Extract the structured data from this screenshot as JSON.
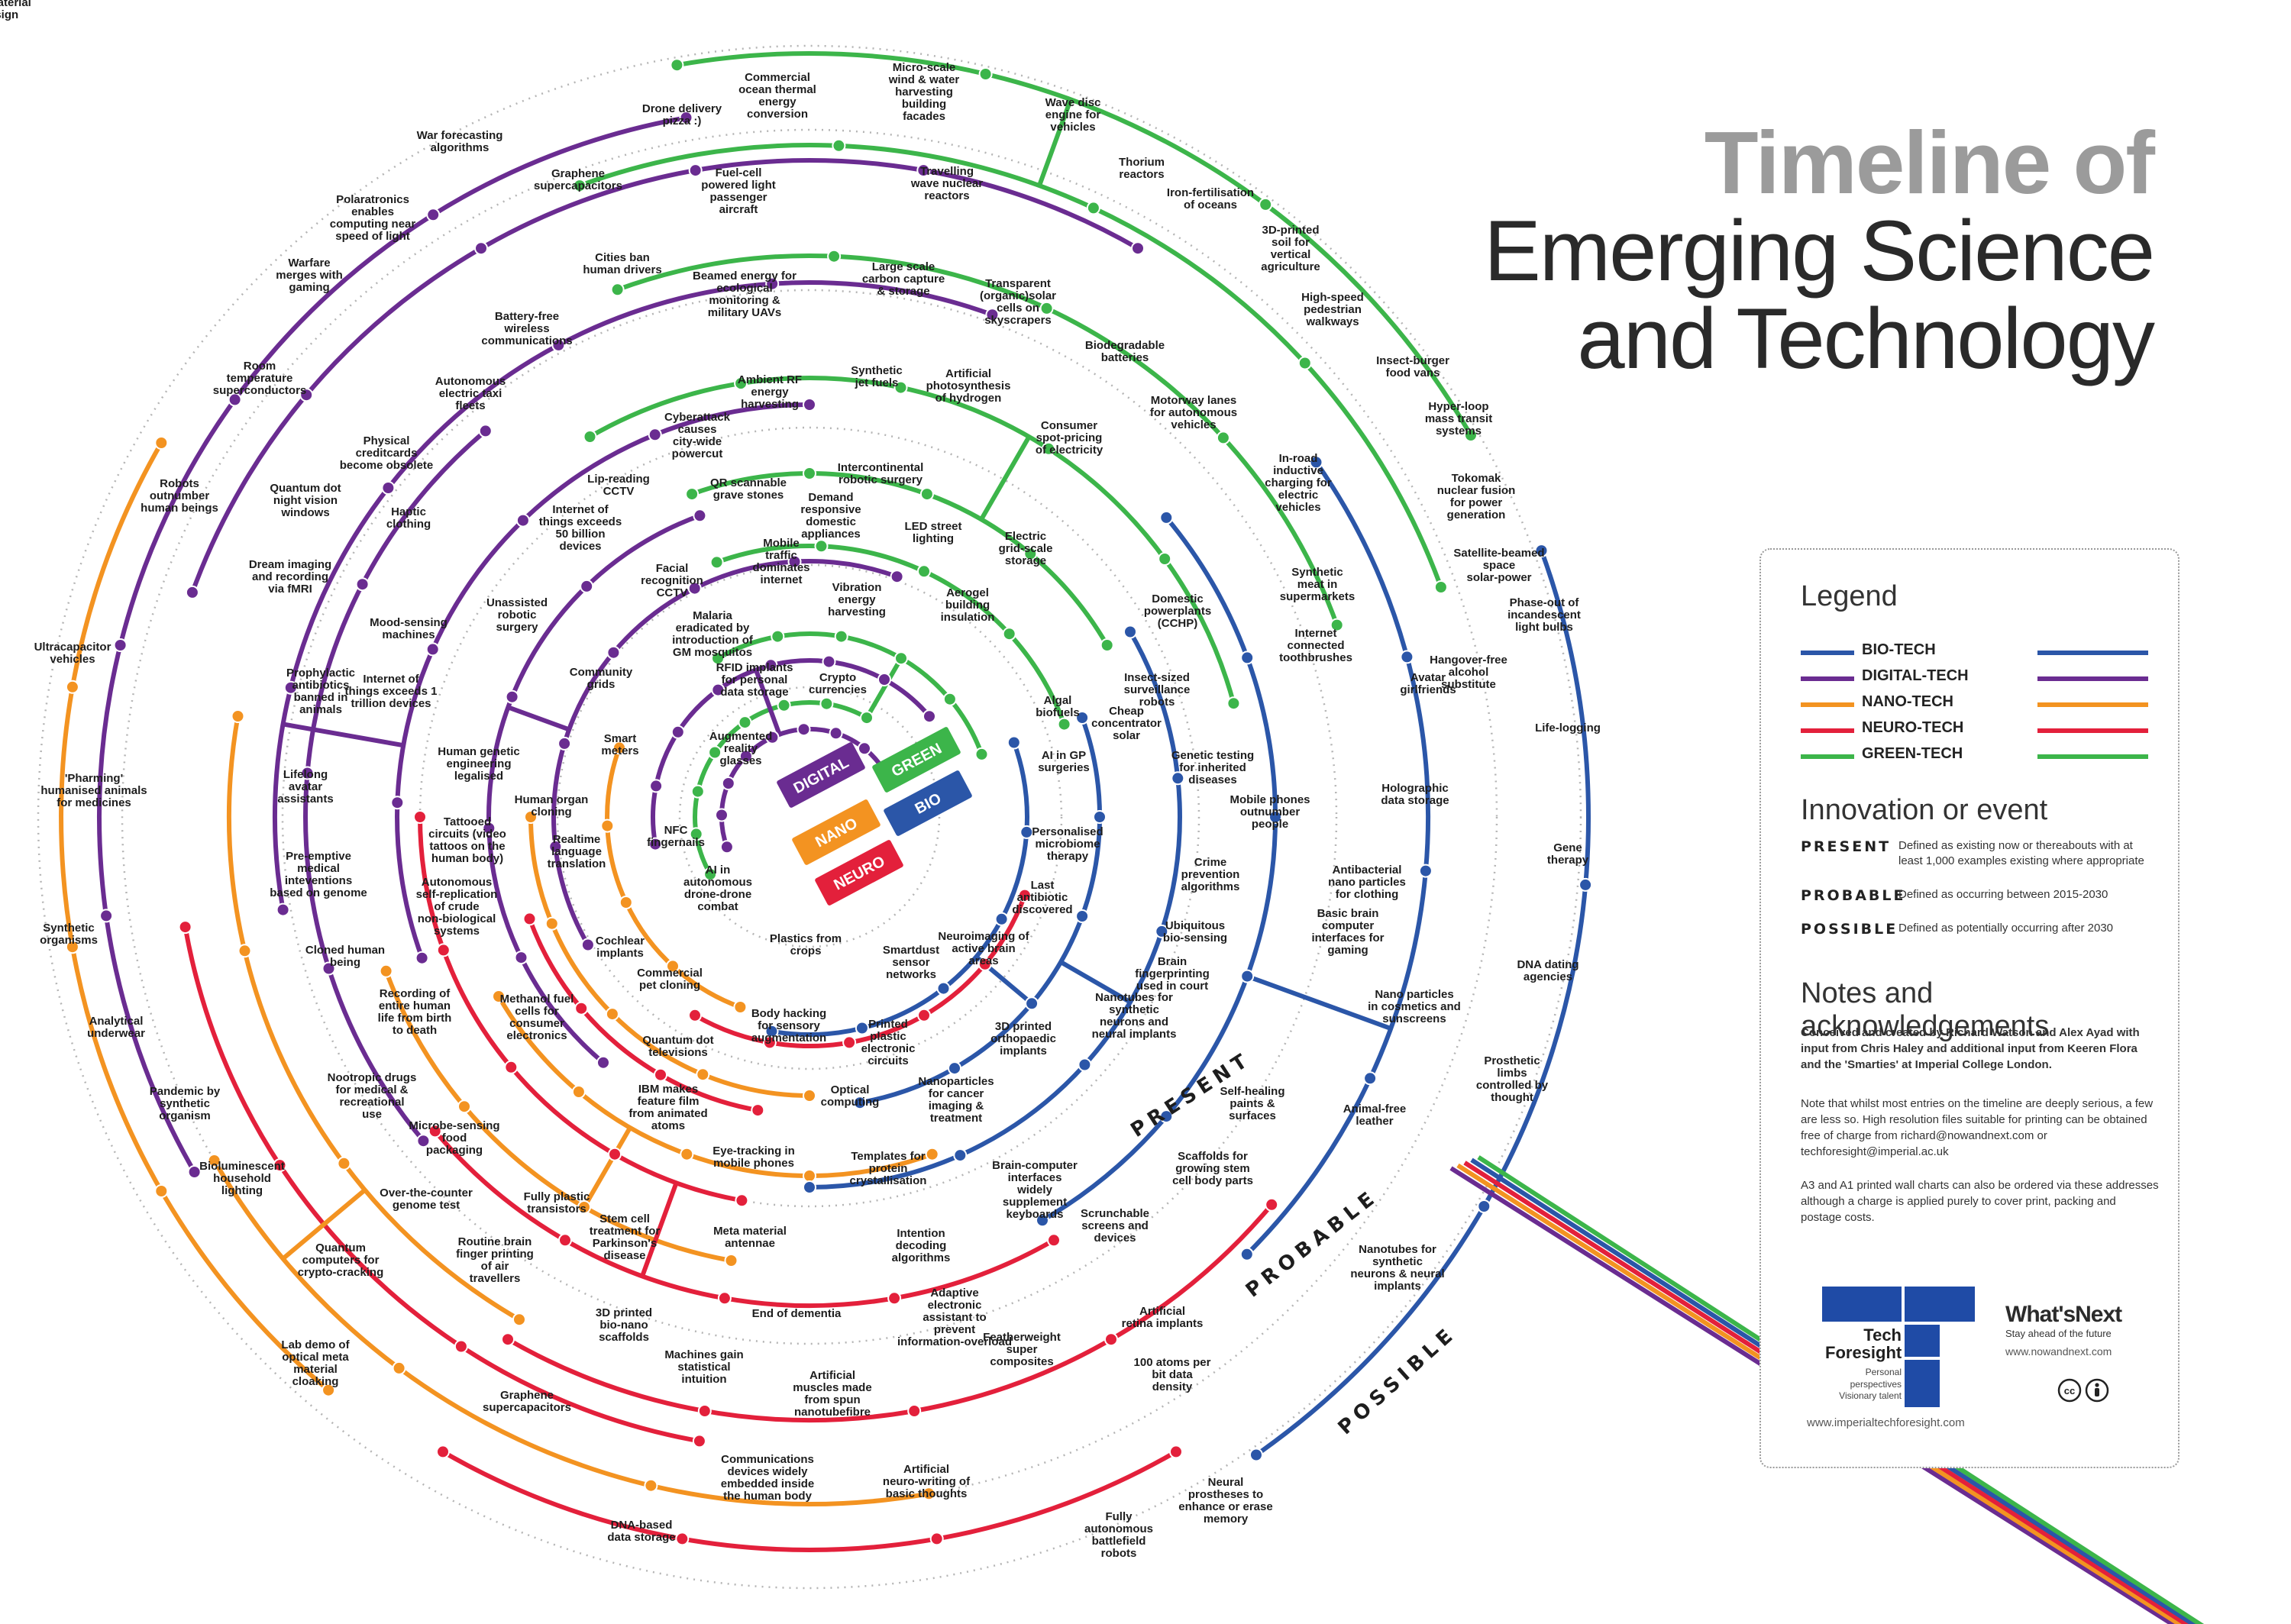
{
  "title": {
    "line1": "Timeline of",
    "line2": "Emerging Science",
    "line3": "and Technology"
  },
  "hub_tags": [
    {
      "label": "DIGITAL",
      "color": "#6a2c91"
    },
    {
      "label": "GREEN",
      "color": "#3cb54a"
    },
    {
      "label": "NANO",
      "color": "#f39321"
    },
    {
      "label": "BIO",
      "color": "#2b56a8"
    },
    {
      "label": "NEURO",
      "color": "#e3203b"
    }
  ],
  "zones": {
    "present": "PRESENT",
    "probable": "PROBABLE",
    "possible": "POSSIBLE"
  },
  "colors": {
    "bio": "#2b56a8",
    "digital": "#6a2c91",
    "nano": "#f39321",
    "neuro": "#e3203b",
    "green": "#3cb54a",
    "grid": "#b5b5b5"
  },
  "labels": [
    {
      "text": "Drone delivery pizza :)"
    },
    {
      "text": "Commercial ocean thermal energy conversion"
    },
    {
      "text": "Micro-scale wind & water harvesting building facades"
    },
    {
      "text": "Wave disc engine for vehicles"
    },
    {
      "text": "War forecasting algorithms"
    },
    {
      "text": "Graphene supercapacitors"
    },
    {
      "text": "Fuel-cell powered light passenger aircraft"
    },
    {
      "text": "Travelling wave nuclear reactors"
    },
    {
      "text": "Thorium reactors"
    },
    {
      "text": "Iron-fertilisation of oceans"
    },
    {
      "text": "Polaratronics enables computing near speed of light"
    },
    {
      "text": "3D-printed soil for vertical agriculture"
    },
    {
      "text": "Cities ban human drivers"
    },
    {
      "text": "Warfare merges with gaming"
    },
    {
      "text": "Beamed energy for ecological monitoring & military UAVs"
    },
    {
      "text": "Large scale carbon capture & storage"
    },
    {
      "text": "Transparent (organic)solar cells on skyscrapers"
    },
    {
      "text": "High-speed pedestrian walkways"
    },
    {
      "text": "Battery-free wireless communications"
    },
    {
      "text": "Room temperature superconductors"
    },
    {
      "text": "Biodegradable batteries"
    },
    {
      "text": "Insect-burger food vans"
    },
    {
      "text": "Synthetic jet fuels"
    },
    {
      "text": "Artificial photosynthesis of hydrogen"
    },
    {
      "text": "Autonomous electric taxi fleets"
    },
    {
      "text": "Ambient RF energy harvesting"
    },
    {
      "text": "Hyper-loop mass transit systems"
    },
    {
      "text": "Motorway lanes for autonomous vehicles"
    },
    {
      "text": "Cyberattack causes city-wide powercut"
    },
    {
      "text": "Consumer spot-pricing of electricity"
    },
    {
      "text": "Physical creditcards become obsolete"
    },
    {
      "text": "Robots outnumber human beings"
    },
    {
      "text": "Quantum dot night vision windows"
    },
    {
      "text": "Lip-reading CCTV"
    },
    {
      "text": "QR scannable grave stones"
    },
    {
      "text": "Intercontinental robotic surgery"
    },
    {
      "text": "Tokomak nuclear fusion for power generation"
    },
    {
      "text": "In-road inductive charging for electric vehicles"
    },
    {
      "text": "Haptic clothing"
    },
    {
      "text": "Internet of things exceeds 50 billion devices"
    },
    {
      "text": "Demand responsive domestic appliances"
    },
    {
      "text": "LED street lighting"
    },
    {
      "text": "Satellite-beamed space solar-power"
    },
    {
      "text": "Electric grid-scale storage"
    },
    {
      "text": "Dream imaging and recording via fMRI"
    },
    {
      "text": "Mobile traffic dominates internet"
    },
    {
      "text": "Facial recognition CCTV"
    },
    {
      "text": "Vibration energy harvesting"
    },
    {
      "text": "Synthetic meat in supermarkets"
    },
    {
      "text": "Mood-sensing machines"
    },
    {
      "text": "Unassisted robotic surgery"
    },
    {
      "text": "Aerogel building insulation"
    },
    {
      "text": "Domestic powerplants (CCHP)"
    },
    {
      "text": "Phase-out of incandescent light bulbs"
    },
    {
      "text": "Malaria eradicated by introduction of GM mosquitos"
    },
    {
      "text": "Internet connected toothbrushes"
    },
    {
      "text": "Ultracapacitor vehicles"
    },
    {
      "text": "Internet of things exceeds 1 trillion devices"
    },
    {
      "text": "Hangover-free alcohol substitute"
    },
    {
      "text": "RFID implants for personal data storage"
    },
    {
      "text": "Crypto currencies"
    },
    {
      "text": "Community grids"
    },
    {
      "text": "Avatar girlfriends"
    },
    {
      "text": "Prophylactic antibiotics banned in animals"
    },
    {
      "text": "Insect-sized surveillance robots"
    },
    {
      "text": "Algal biofuels"
    },
    {
      "text": "Cheap concentrator solar"
    },
    {
      "text": "Smart meters"
    },
    {
      "text": "Augmented reality glasses"
    },
    {
      "text": "Life-logging"
    },
    {
      "text": "Human genetic engineering legalised"
    },
    {
      "text": "AI in GP surgeries"
    },
    {
      "text": "Genetic testing for inherited diseases"
    },
    {
      "text": "'Pharming' humanised animals for medicines"
    },
    {
      "text": "Lifelong avatar assistants"
    },
    {
      "text": "Holographic data storage"
    },
    {
      "text": "Human organ cloning"
    },
    {
      "text": "NFC fingernails"
    },
    {
      "text": "Mobile phones outnumber people"
    },
    {
      "text": "Personalised microbiome therapy"
    },
    {
      "text": "Gene therapy"
    },
    {
      "text": "Tattooed circuits (video tattoos on the human body)"
    },
    {
      "text": "Realtime language translation"
    },
    {
      "text": "Crime prevention algorithms"
    },
    {
      "text": "Pre-emptive medical inteventions based on genome"
    },
    {
      "text": "AI in autonomous drone-drone combat"
    },
    {
      "text": "Antibacterial nano particles for clothing"
    },
    {
      "text": "Last antibiotic discovered"
    },
    {
      "text": "Synthetic organisms"
    },
    {
      "text": "Autonomous self-replication of crude non-biological systems"
    },
    {
      "text": "Basic brain computer interfaces for gaming"
    },
    {
      "text": "Ubiquitous bio-sensing"
    },
    {
      "text": "Plastics from crops"
    },
    {
      "text": "Cochlear implants"
    },
    {
      "text": "Neuroimaging of active brain areas"
    },
    {
      "text": "DNA dating agencies"
    },
    {
      "text": "Cloned human being"
    },
    {
      "text": "Smartdust sensor networks"
    },
    {
      "text": "Brain fingerprinting used in court"
    },
    {
      "text": "Commercial pet cloning"
    },
    {
      "text": "Nano particles in cosmetics and sunscreens"
    },
    {
      "text": "Analytical underwear"
    },
    {
      "text": "Recording of entire human life from birth to death"
    },
    {
      "text": "Methanol fuel cells for consumer electronics"
    },
    {
      "text": "Nanotubes for synthetic neurons and neural implants"
    },
    {
      "text": "3D printed orthopaedic implants"
    },
    {
      "text": "Body hacking for sensory augmentation"
    },
    {
      "text": "Printed plastic electronic circuits"
    },
    {
      "text": "Quantum dot televisions"
    },
    {
      "text": "Prosthetic limbs controlled by thought"
    },
    {
      "text": "Pandemic by synthetic organism"
    },
    {
      "text": "Optical computing"
    },
    {
      "text": "Nanoparticles for cancer imaging & treatment"
    },
    {
      "text": "Nootropic drugs for medical & recreational use"
    },
    {
      "text": "IBM makes feature film from animated atoms"
    },
    {
      "text": "Self-healing paints & surfaces"
    },
    {
      "text": "Animal-free leather"
    },
    {
      "text": "Microbe-sensing food packaging"
    },
    {
      "text": "Eye-tracking in mobile phones"
    },
    {
      "text": "Templates for protein crystallisation"
    },
    {
      "text": "Scaffolds for growing stem cell body parts"
    },
    {
      "text": "Bioluminescent household lighting"
    },
    {
      "text": "Brain-computer interfaces widely supplement keyboards"
    },
    {
      "text": "Over-the-counter genome test"
    },
    {
      "text": "Fully plastic transistors"
    },
    {
      "text": "Scrunchable screens and devices"
    },
    {
      "text": "Stem cell treatment for Parkinson's disease"
    },
    {
      "text": "Meta material antennae"
    },
    {
      "text": "Intention decoding algorithms"
    },
    {
      "text": "Quantum computers for crypto-cracking"
    },
    {
      "text": "Routine brain finger printing of air travellers"
    },
    {
      "text": "Nanotubes for synthetic neurons & neural implants"
    },
    {
      "text": "End of dementia"
    },
    {
      "text": "Adaptive electronic assistant to prevent information-overload"
    },
    {
      "text": "Artificial retina implants"
    },
    {
      "text": "3D printed bio-nano scaffolds"
    },
    {
      "text": "Featherweight super composites"
    },
    {
      "text": "Lab demo of optical meta material cloaking"
    },
    {
      "text": "Machines gain statistical intuition"
    },
    {
      "text": "100 atoms per bit data density"
    },
    {
      "text": "Artificial muscles made from spun nanotubefibre"
    },
    {
      "text": "Graphene supercapacitors"
    },
    {
      "text": "Communications devices widely embedded inside the human body"
    },
    {
      "text": "Artificial neuro-writing of basic thoughts"
    },
    {
      "text": "Neural prostheses to enhance or erase memory"
    },
    {
      "text": "DNA-based data storage"
    },
    {
      "text": "Fully autonomous battlefield robots"
    },
    {
      "text": "Quantum computers used for material design"
    }
  ],
  "legend": {
    "title": "Legend",
    "items": [
      {
        "name": "BIO-TECH",
        "color": "#2b56a8"
      },
      {
        "name": "DIGITAL-TECH",
        "color": "#6a2c91"
      },
      {
        "name": "NANO-TECH",
        "color": "#f39321"
      },
      {
        "name": "NEURO-TECH",
        "color": "#e3203b"
      },
      {
        "name": "GREEN-TECH",
        "color": "#3cb54a"
      }
    ]
  },
  "innovation": {
    "title": "Innovation or event",
    "items": [
      {
        "key": "PRESENT",
        "desc": "Defined as existing now or thereabouts with at least 1,000 examples existing where appropriate"
      },
      {
        "key": "PROBABLE",
        "desc": "Defined as occurring between 2015-2030"
      },
      {
        "key": "POSSIBLE",
        "desc": "Defined as potentially occurring after 2030"
      }
    ]
  },
  "notes": {
    "title": "Notes and acknowledgements",
    "p1": "Conceived and created by Richard Watson and Alex Ayad with input from Chris Haley and additional input from Keeren Flora and the 'Smarties' at Imperial College London.",
    "p2": "Note that whilst most entries on the timeline are deeply serious, a few are less so. High resolution files suitable for printing can be obtained free of charge from richard@nowandnext.com or techforesight@imperial.ac.uk",
    "p3": "A3 and A1 printed wall charts can also be ordered via these addresses although a charge is applied purely to cover print, packing and postage costs."
  },
  "logos": {
    "tf_line1": "Tech",
    "tf_line2": "Foresight",
    "tf_tag1": "Personal perspectives",
    "tf_tag2": "Visionary talent",
    "tf_url": "www.imperialtechforesight.com",
    "wn_name": "What'sNext",
    "wn_tag": "Stay ahead of the future",
    "wn_url": "www.nowandnext.com",
    "cc": "cc"
  }
}
